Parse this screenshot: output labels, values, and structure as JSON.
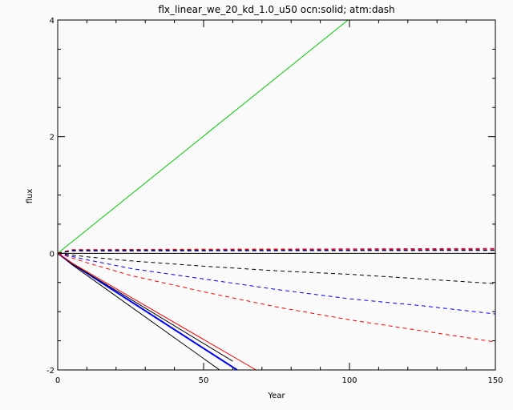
{
  "chart_data": {
    "type": "line",
    "title": "flx_linear_we_20_kd_1.0_u50 ocn:solid; atm:dash",
    "xlabel": "Year",
    "ylabel": "flux",
    "xlim": [
      0,
      150
    ],
    "ylim": [
      -2,
      4
    ],
    "x_ticks": [
      0,
      50,
      100,
      150
    ],
    "y_ticks": [
      -2,
      0,
      2,
      4
    ],
    "grid": false,
    "legend": "none",
    "series": [
      {
        "color": "#00cc00",
        "style": "solid",
        "width": 1,
        "x": [
          0,
          100
        ],
        "y": [
          0,
          4.02
        ]
      },
      {
        "color": "#000000",
        "style": "solid",
        "width": 1,
        "x": [
          0,
          150
        ],
        "y": [
          0,
          0.0
        ]
      },
      {
        "color": "#000000",
        "style": "solid",
        "width": 1,
        "x": [
          0,
          5,
          55.5
        ],
        "y": [
          0,
          -0.2,
          -2.0
        ]
      },
      {
        "color": "#0000ff",
        "style": "solid",
        "width": 2,
        "x": [
          0,
          5,
          61.5
        ],
        "y": [
          0,
          -0.18,
          -2.0
        ]
      },
      {
        "color": "#000000",
        "style": "solid",
        "width": 1,
        "x": [
          0,
          5,
          60
        ],
        "y": [
          0,
          -0.18,
          -1.85
        ]
      },
      {
        "color": "#ff0000",
        "style": "solid",
        "width": 1,
        "x": [
          0,
          5,
          68
        ],
        "y": [
          0,
          -0.17,
          -2.0
        ]
      },
      {
        "color": "#ff0000",
        "style": "dashed",
        "width": 1.5,
        "x": [
          0,
          5,
          150
        ],
        "y": [
          0,
          0.06,
          0.08
        ]
      },
      {
        "color": "#0000ff",
        "style": "dashed",
        "width": 1,
        "x": [
          0,
          5,
          150
        ],
        "y": [
          0,
          0.05,
          0.06
        ]
      },
      {
        "color": "#000000",
        "style": "dashed",
        "width": 1,
        "x": [
          0,
          5,
          150
        ],
        "y": [
          0,
          0.04,
          0.05
        ]
      },
      {
        "color": "#000000",
        "style": "dashed",
        "width": 1,
        "x": [
          0,
          10,
          25,
          50,
          75,
          100,
          125,
          150
        ],
        "y": [
          0,
          -0.06,
          -0.13,
          -0.22,
          -0.3,
          -0.36,
          -0.44,
          -0.52
        ]
      },
      {
        "color": "#0000ff",
        "style": "dashed",
        "width": 1,
        "x": [
          0,
          10,
          25,
          50,
          75,
          100,
          125,
          150
        ],
        "y": [
          0,
          -0.11,
          -0.26,
          -0.44,
          -0.62,
          -0.78,
          -0.9,
          -1.04
        ]
      },
      {
        "color": "#ff0000",
        "style": "dashed",
        "width": 1,
        "x": [
          0,
          10,
          25,
          50,
          75,
          100,
          125,
          150
        ],
        "y": [
          0,
          -0.16,
          -0.38,
          -0.66,
          -0.92,
          -1.14,
          -1.33,
          -1.52
        ]
      }
    ]
  }
}
